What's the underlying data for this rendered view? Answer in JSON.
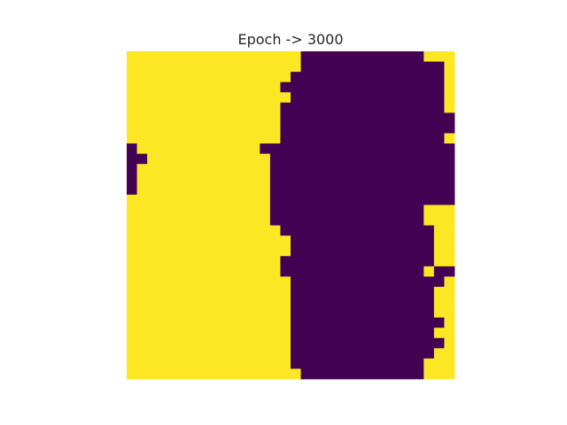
{
  "chart_data": {
    "type": "heatmap",
    "title": "Epoch -> 3000",
    "rows": 32,
    "cols": 32,
    "xlabel": "",
    "ylabel": "",
    "grid": false,
    "axes_visible": false,
    "values": [
      0,
      1
    ],
    "colors": {
      "0": "#440154",
      "1": "#fde725"
    },
    "row_runs": [
      [
        [
          0,
          17,
          1
        ],
        [
          17,
          29,
          0
        ],
        [
          29,
          32,
          1
        ]
      ],
      [
        [
          0,
          17,
          1
        ],
        [
          17,
          31,
          0
        ],
        [
          31,
          32,
          1
        ]
      ],
      [
        [
          0,
          16,
          1
        ],
        [
          16,
          31,
          0
        ],
        [
          31,
          32,
          1
        ]
      ],
      [
        [
          0,
          15,
          1
        ],
        [
          15,
          31,
          0
        ],
        [
          31,
          32,
          1
        ]
      ],
      [
        [
          0,
          16,
          1
        ],
        [
          16,
          31,
          0
        ],
        [
          31,
          32,
          1
        ]
      ],
      [
        [
          0,
          15,
          1
        ],
        [
          15,
          31,
          0
        ],
        [
          31,
          32,
          1
        ]
      ],
      [
        [
          0,
          15,
          1
        ],
        [
          15,
          32,
          0
        ]
      ],
      [
        [
          0,
          15,
          1
        ],
        [
          15,
          32,
          0
        ]
      ],
      [
        [
          0,
          15,
          1
        ],
        [
          15,
          31,
          0
        ],
        [
          31,
          32,
          1
        ]
      ],
      [
        [
          0,
          1,
          0
        ],
        [
          1,
          13,
          1
        ],
        [
          13,
          32,
          0
        ]
      ],
      [
        [
          0,
          1,
          0
        ],
        [
          1,
          2,
          0
        ],
        [
          2,
          14,
          1
        ],
        [
          14,
          32,
          0
        ]
      ],
      [
        [
          0,
          1,
          0
        ],
        [
          1,
          14,
          1
        ],
        [
          14,
          32,
          0
        ]
      ],
      [
        [
          0,
          1,
          0
        ],
        [
          1,
          14,
          1
        ],
        [
          14,
          32,
          0
        ]
      ],
      [
        [
          0,
          1,
          0
        ],
        [
          1,
          14,
          1
        ],
        [
          14,
          32,
          0
        ]
      ],
      [
        [
          0,
          14,
          1
        ],
        [
          14,
          32,
          0
        ]
      ],
      [
        [
          0,
          14,
          1
        ],
        [
          14,
          29,
          0
        ],
        [
          29,
          32,
          1
        ]
      ],
      [
        [
          0,
          14,
          1
        ],
        [
          14,
          29,
          0
        ],
        [
          29,
          32,
          1
        ]
      ],
      [
        [
          0,
          15,
          1
        ],
        [
          15,
          30,
          0
        ],
        [
          30,
          32,
          1
        ]
      ],
      [
        [
          0,
          16,
          1
        ],
        [
          16,
          30,
          0
        ],
        [
          30,
          32,
          1
        ]
      ],
      [
        [
          0,
          16,
          1
        ],
        [
          16,
          30,
          0
        ],
        [
          30,
          32,
          1
        ]
      ],
      [
        [
          0,
          15,
          1
        ],
        [
          15,
          30,
          0
        ],
        [
          30,
          32,
          1
        ]
      ],
      [
        [
          0,
          15,
          1
        ],
        [
          15,
          29,
          0
        ],
        [
          29,
          30,
          1
        ],
        [
          30,
          32,
          0
        ]
      ],
      [
        [
          0,
          16,
          1
        ],
        [
          16,
          31,
          0
        ],
        [
          31,
          32,
          1
        ]
      ],
      [
        [
          0,
          16,
          1
        ],
        [
          16,
          30,
          0
        ],
        [
          30,
          32,
          1
        ]
      ],
      [
        [
          0,
          16,
          1
        ],
        [
          16,
          30,
          0
        ],
        [
          30,
          32,
          1
        ]
      ],
      [
        [
          0,
          16,
          1
        ],
        [
          16,
          30,
          0
        ],
        [
          30,
          32,
          1
        ]
      ],
      [
        [
          0,
          16,
          1
        ],
        [
          16,
          31,
          0
        ],
        [
          31,
          32,
          1
        ]
      ],
      [
        [
          0,
          16,
          1
        ],
        [
          16,
          30,
          0
        ],
        [
          30,
          32,
          1
        ]
      ],
      [
        [
          0,
          16,
          1
        ],
        [
          16,
          31,
          0
        ],
        [
          31,
          32,
          1
        ]
      ],
      [
        [
          0,
          16,
          1
        ],
        [
          16,
          30,
          0
        ],
        [
          30,
          32,
          1
        ]
      ],
      [
        [
          0,
          16,
          1
        ],
        [
          16,
          29,
          0
        ],
        [
          29,
          32,
          1
        ]
      ],
      [
        [
          0,
          17,
          1
        ],
        [
          17,
          29,
          0
        ],
        [
          29,
          32,
          1
        ]
      ]
    ]
  }
}
